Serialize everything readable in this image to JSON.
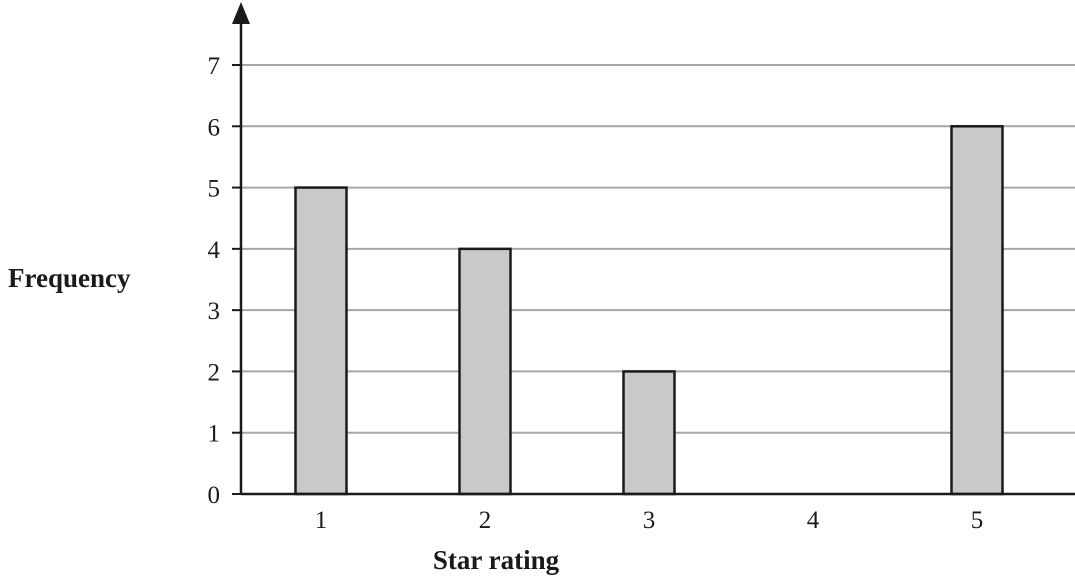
{
  "chart_data": {
    "type": "bar",
    "title": "",
    "xlabel": "Star rating",
    "ylabel": "Frequency",
    "categories": [
      "1",
      "2",
      "3",
      "4",
      "5"
    ],
    "values": [
      5,
      4,
      2,
      0,
      6
    ],
    "ylim": [
      0,
      7
    ],
    "yticks": [
      "0",
      "1",
      "2",
      "3",
      "4",
      "5",
      "6",
      "7"
    ],
    "grid": true,
    "legend": "none",
    "colors": {
      "bar_fill": "#c8c9cb",
      "bar_stroke": "#1a1a1a",
      "grid": "#a6a6a6",
      "axis": "#1a1a1a"
    }
  }
}
